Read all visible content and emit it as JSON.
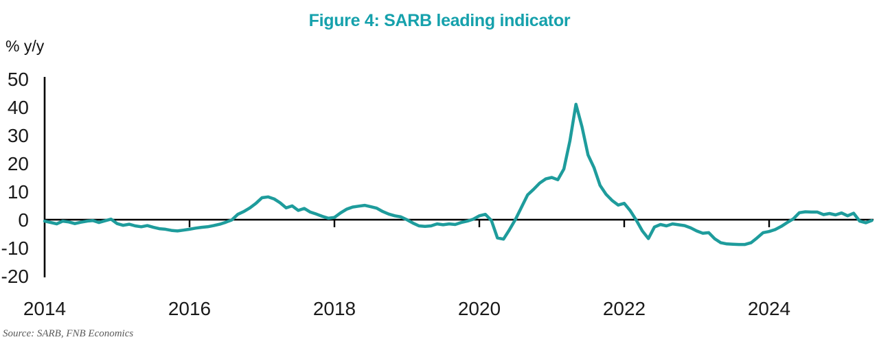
{
  "source_note": "Source: SARB, FNB Economics",
  "chart_data": {
    "type": "line",
    "title": "Figure 4: SARB leading indicator",
    "xlabel": "",
    "ylabel": "% y/y",
    "ylim": [
      -20,
      50
    ],
    "y_ticks": [
      50,
      40,
      30,
      20,
      10,
      0,
      -10,
      -20
    ],
    "x_ticks": [
      2014,
      2016,
      2018,
      2020,
      2022,
      2024
    ],
    "x_range": [
      2014,
      2025.5
    ],
    "grid": false,
    "legend_position": "none",
    "colors": {
      "line": "#1E9C9C",
      "title": "#16A1AC",
      "axis": "#000000",
      "tick_labels": "#1a1a1a",
      "source": "#595959"
    },
    "series": [
      {
        "name": "SARB leading indicator",
        "unit": "% y/y",
        "frequency": "monthly",
        "start_year": 2014,
        "start_month": 1,
        "values": [
          -0.5,
          -1.0,
          -1.5,
          -0.5,
          -0.8,
          -1.4,
          -0.9,
          -0.5,
          -0.3,
          -1.0,
          -0.4,
          0.2,
          -1.4,
          -2.0,
          -1.6,
          -2.2,
          -2.5,
          -2.1,
          -2.7,
          -3.2,
          -3.4,
          -3.8,
          -4.0,
          -3.7,
          -3.4,
          -3.0,
          -2.7,
          -2.5,
          -2.1,
          -1.6,
          -0.9,
          -0.1,
          1.9,
          2.9,
          4.2,
          5.8,
          7.8,
          8.1,
          7.4,
          6.0,
          4.2,
          4.9,
          3.3,
          4.0,
          2.7,
          2.0,
          1.2,
          0.5,
          0.8,
          2.4,
          3.7,
          4.5,
          4.8,
          5.1,
          4.6,
          4.1,
          2.9,
          2.0,
          1.4,
          1.0,
          0.0,
          -1.2,
          -2.2,
          -2.4,
          -2.2,
          -1.5,
          -1.8,
          -1.5,
          -1.7,
          -1.0,
          -0.5,
          0.2,
          1.4,
          1.9,
          -0.3,
          -6.5,
          -6.9,
          -3.5,
          0.2,
          4.5,
          8.8,
          10.8,
          13.0,
          14.5,
          15.0,
          14.2,
          18.0,
          28.0,
          41.0,
          33.0,
          23.0,
          18.5,
          12.2,
          9.0,
          6.8,
          5.2,
          5.8,
          3.2,
          -0.2,
          -4.0,
          -6.7,
          -2.6,
          -1.7,
          -2.2,
          -1.5,
          -1.8,
          -2.1,
          -2.9,
          -4.0,
          -4.8,
          -4.6,
          -6.8,
          -8.2,
          -8.6,
          -8.7,
          -8.8,
          -8.8,
          -8.2,
          -6.5,
          -4.6,
          -4.2,
          -3.5,
          -2.4,
          -1.0,
          0.3,
          2.5,
          2.8,
          2.7,
          2.7,
          1.8,
          2.2,
          1.7,
          2.4,
          1.4,
          2.3,
          -0.5,
          -1.1,
          -0.3
        ]
      }
    ]
  }
}
